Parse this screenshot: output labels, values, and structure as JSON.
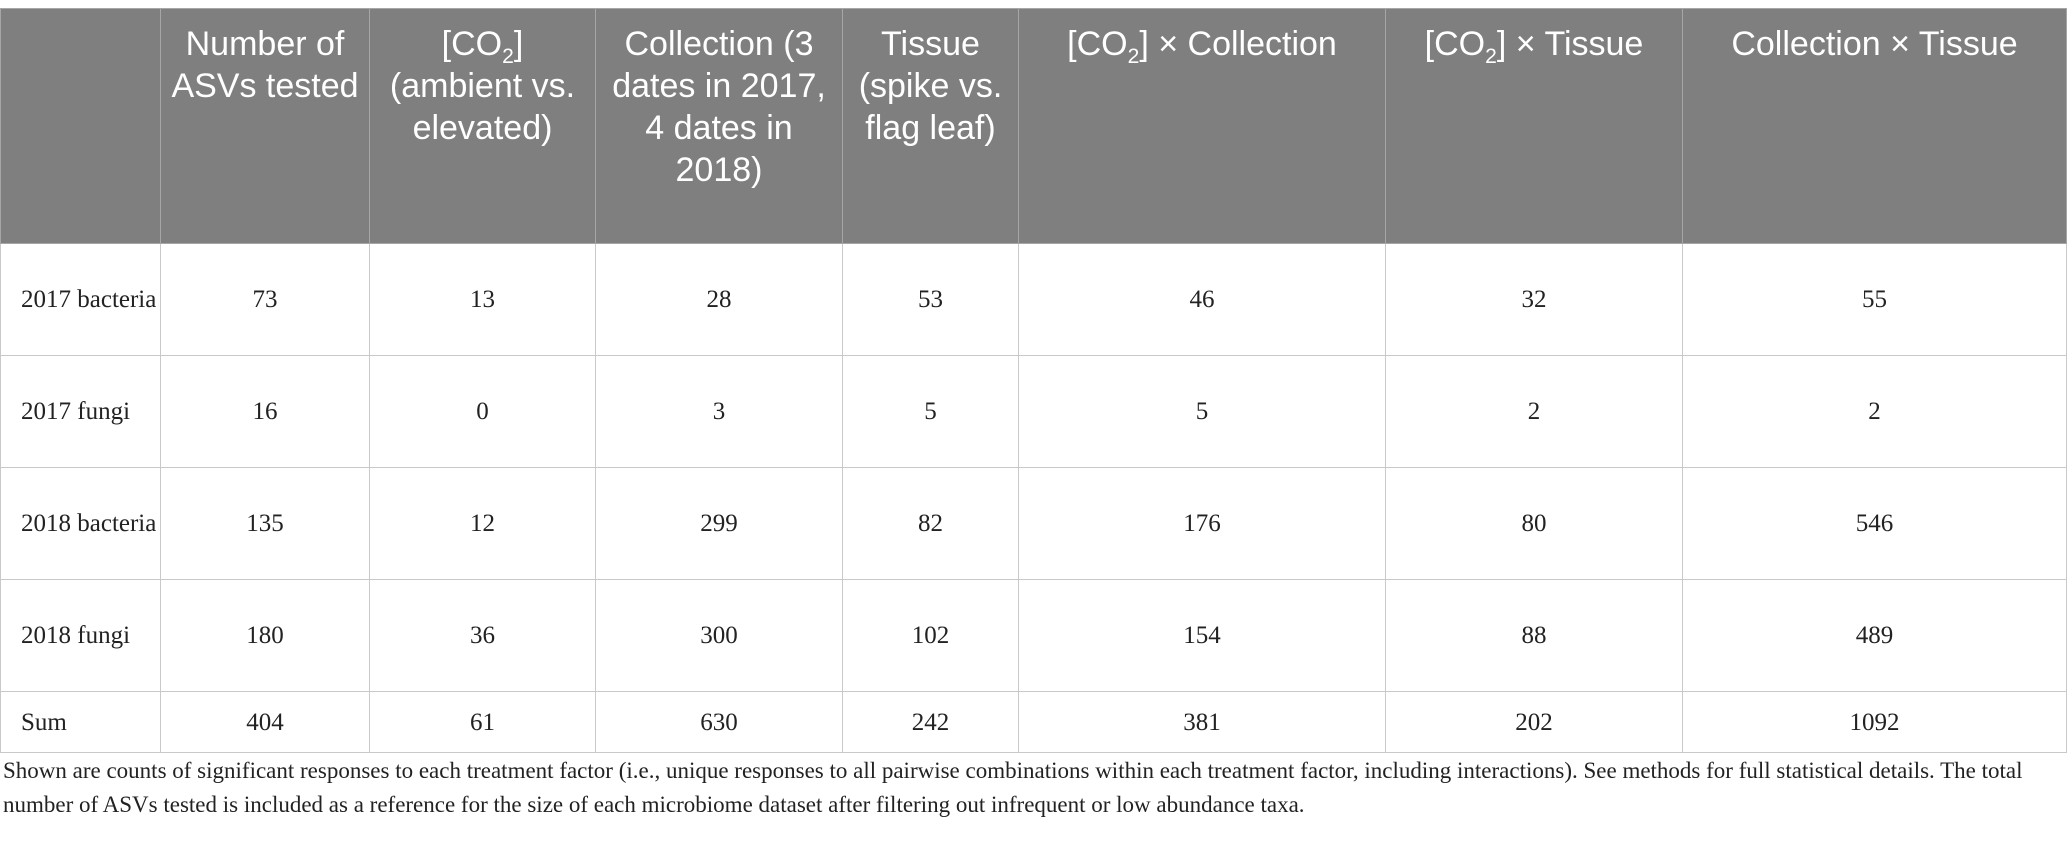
{
  "table": {
    "headers": [
      "",
      "Number of ASVs tested",
      "[CO₂] (ambient vs. elevated)",
      "Collection (3 dates in 2017, 4 dates in 2018)",
      "Tissue (spike vs. flag leaf)",
      "[CO₂] × Collection",
      "[CO₂] × Tissue",
      "Collection × Tissue"
    ],
    "rows": [
      {
        "label": "2017 bacteria",
        "values": [
          "73",
          "13",
          "28",
          "53",
          "46",
          "32",
          "55"
        ]
      },
      {
        "label": "2017 fungi",
        "values": [
          "16",
          "0",
          "3",
          "5",
          "5",
          "2",
          "2"
        ]
      },
      {
        "label": "2018 bacteria",
        "values": [
          "135",
          "12",
          "299",
          "82",
          "176",
          "80",
          "546"
        ]
      },
      {
        "label": "2018 fungi",
        "values": [
          "180",
          "36",
          "300",
          "102",
          "154",
          "88",
          "489"
        ]
      },
      {
        "label": "Sum",
        "values": [
          "404",
          "61",
          "630",
          "242",
          "381",
          "202",
          "1092"
        ]
      }
    ]
  },
  "caption": "Shown are counts of significant responses to each treatment factor (i.e., unique responses to all pairwise combinations within each treatment factor, including interactions). See methods for full statistical details. The total number of ASVs tested is included as a reference for the size of each microbiome dataset after filtering out infrequent or low abundance taxa.",
  "colors": {
    "header_bg": "#7f7f7f",
    "header_text": "#ffffff",
    "grid": "#c9c9c9",
    "body_text": "#222222"
  }
}
